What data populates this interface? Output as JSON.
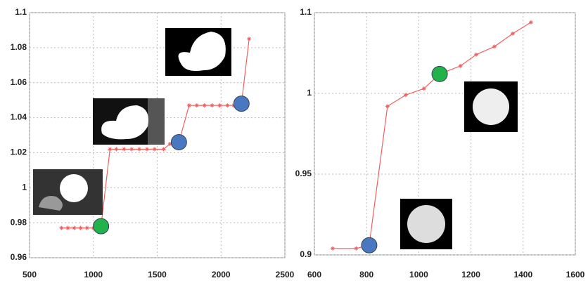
{
  "chart_data": [
    {
      "type": "line",
      "x": [
        750,
        800,
        850,
        900,
        950,
        1000,
        1060,
        1130,
        1180,
        1240,
        1300,
        1360,
        1420,
        1480,
        1550,
        1600,
        1670,
        1750,
        1810,
        1870,
        1930,
        1990,
        2050,
        2100,
        2160,
        2220
      ],
      "series": [
        {
          "color": "#f06060",
          "values": [
            0.977,
            0.977,
            0.977,
            0.977,
            0.977,
            0.977,
            0.978,
            1.022,
            1.022,
            1.022,
            1.022,
            1.022,
            1.022,
            1.022,
            1.022,
            1.025,
            1.026,
            1.047,
            1.047,
            1.047,
            1.047,
            1.047,
            1.047,
            1.047,
            1.048,
            1.085
          ]
        }
      ],
      "highlights": [
        {
          "x": 1060,
          "y": 0.978,
          "color": "#22b24c"
        },
        {
          "x": 1670,
          "y": 1.026,
          "color": "#4a78c0"
        },
        {
          "x": 2160,
          "y": 1.048,
          "color": "#4a78c0"
        }
      ],
      "xlim": [
        500,
        2500
      ],
      "xticks": [
        500,
        1000,
        1500,
        2000,
        2500
      ],
      "ylim": [
        0.96,
        1.1
      ],
      "yticks": [
        0.96,
        0.98,
        1,
        1.02,
        1.04,
        1.06,
        1.08,
        1.1
      ],
      "grid": true
    },
    {
      "type": "line",
      "x": [
        670,
        760,
        810,
        880,
        950,
        1020,
        1080,
        1160,
        1220,
        1290,
        1360,
        1430
      ],
      "series": [
        {
          "color": "#f06060",
          "values": [
            0.904,
            0.904,
            0.906,
            0.992,
            0.999,
            1.003,
            1.012,
            1.017,
            1.024,
            1.029,
            1.037,
            1.044
          ]
        }
      ],
      "highlights": [
        {
          "x": 810,
          "y": 0.906,
          "color": "#4a78c0"
        },
        {
          "x": 1080,
          "y": 1.012,
          "color": "#22b24c"
        }
      ],
      "xlim": [
        600,
        1600
      ],
      "xticks": [
        600,
        800,
        1000,
        1200,
        1400,
        1600
      ],
      "ylim": [
        0.9,
        1.05
      ],
      "yticks": [
        0.9,
        0.95,
        1,
        {
          "value": 1.05,
          "label": "1.1"
        }
      ],
      "grid": true
    }
  ]
}
